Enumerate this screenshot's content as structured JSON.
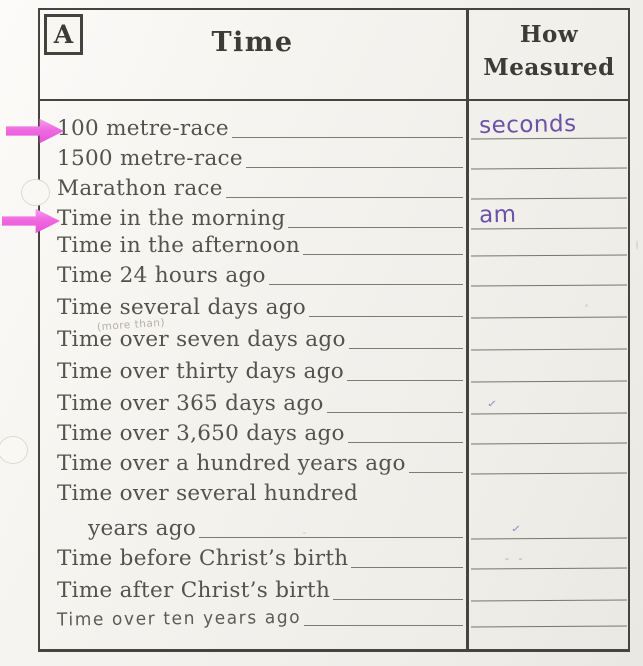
{
  "section_label": "A",
  "table": {
    "col1_header": "Time",
    "col2_header": "How Measured",
    "rows": [
      {
        "label": "100 metre-race",
        "answer": "seconds",
        "arrow": true
      },
      {
        "label": "1500 metre-race"
      },
      {
        "label": "Marathon race"
      },
      {
        "label": "Time in the morning",
        "answer": "am",
        "arrow": true
      },
      {
        "label": "Time in the afternoon"
      },
      {
        "label": "Time 24 hours ago"
      },
      {
        "label": "Time several days ago"
      },
      {
        "label": "Time over seven days ago",
        "annotation": "(more than)"
      },
      {
        "label": "Time over thirty days ago"
      },
      {
        "label": "Time over 365 days ago",
        "mark": "✓"
      },
      {
        "label": "Time over 3,650 days ago"
      },
      {
        "label": "Time over a hundred years ago"
      },
      {
        "label": "Time over several hundred",
        "no_line": true
      },
      {
        "label": "years ago",
        "indent": true,
        "mark": "✓"
      },
      {
        "label": "Time before Christ’s birth",
        "mark": "- -"
      },
      {
        "label": "Time after Christ’s birth"
      },
      {
        "label": "Time over ten years ago",
        "handwritten": true
      }
    ]
  },
  "colors": {
    "handwriting_purple": "#6b52a8",
    "arrow_magenta": "#ee5fe0",
    "ink": "#46443f"
  }
}
